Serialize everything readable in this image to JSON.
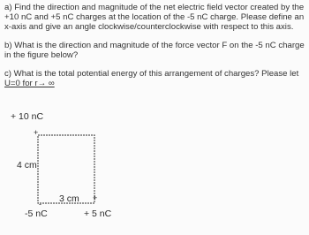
{
  "questions": [
    {
      "lines": [
        "a) Find the direction and magnitude of the net electric field vector created by the",
        "+10 nC and +5 nC charges at the location of the -5 nC charge.  Please define an",
        "x-axis and give an angle clockwise/counterclockwise with respect to this axis."
      ]
    },
    {
      "lines": [
        "b) What is the direction and magnitude of the force vector F on the -5 nC charge",
        "in the figure below?"
      ]
    },
    {
      "lines": [
        "c) What is the total potential energy of this arrangement of charges?  Please let",
        "U=0 for r→ ∞"
      ]
    }
  ],
  "figure": {
    "top_charge": "+ 10 nC",
    "top_sign": "+",
    "vertical_length": "4 cm",
    "horizontal_length": "3 cm",
    "corner_sign": "-",
    "right_sign": "+",
    "corner_charge": "-5 nC",
    "right_charge": "+ 5 nC"
  }
}
